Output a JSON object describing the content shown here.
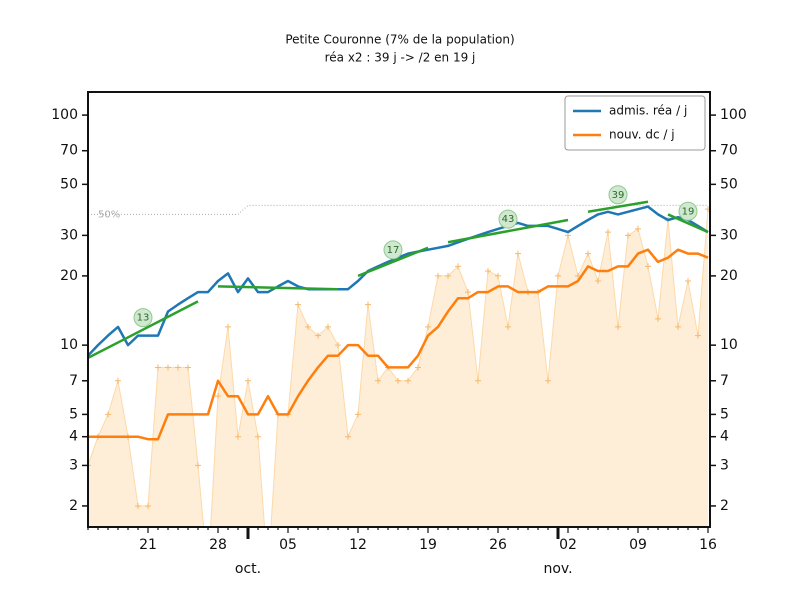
{
  "chart_data": {
    "type": "line",
    "title": "Petite Couronne (7% de la population)",
    "subtitle": "réa x2 : 39 j -> /2 en 19 j",
    "log_y": true,
    "ylim": [
      1.62,
      126
    ],
    "yticks": [
      2,
      3,
      4,
      5,
      7,
      10,
      20,
      30,
      50,
      70,
      100
    ],
    "legend": "upper right",
    "categories": [
      null,
      null,
      null,
      null,
      null,
      null,
      "21",
      null,
      null,
      null,
      null,
      null,
      null,
      "28",
      null,
      null,
      null,
      null,
      null,
      null,
      "05",
      null,
      null,
      null,
      null,
      null,
      null,
      "12",
      null,
      null,
      null,
      null,
      null,
      null,
      "19",
      null,
      null,
      null,
      null,
      null,
      null,
      "26",
      null,
      null,
      null,
      null,
      null,
      null,
      "02",
      null,
      null,
      null,
      null,
      null,
      null,
      "09",
      null,
      null,
      null,
      null,
      null,
      null,
      "16"
    ],
    "month_labels": [
      {
        "label": "oct.",
        "at": 16
      },
      {
        "label": "nov.",
        "at": 47
      }
    ],
    "series": [
      {
        "name": "admis. réa / j",
        "color": "#1f77b4",
        "values": [
          9,
          10,
          11,
          12,
          10,
          11,
          11,
          11,
          14,
          15,
          16,
          17,
          17,
          19,
          20.5,
          17,
          19.5,
          17,
          17,
          18,
          19,
          18,
          17.5,
          17.5,
          17.5,
          17.5,
          17.5,
          19,
          21,
          22,
          23,
          24,
          25,
          25.5,
          26,
          26.5,
          27,
          28,
          29,
          30,
          31,
          32,
          33,
          34,
          33,
          33,
          33,
          32,
          31,
          33,
          35,
          37,
          38,
          37,
          38,
          39,
          40,
          37,
          35,
          36,
          35,
          33,
          31
        ]
      },
      {
        "name": "nouv. dc / j",
        "color": "#ff7f0e",
        "values": [
          4,
          4,
          4,
          4,
          4,
          4,
          3.9,
          3.9,
          5,
          5,
          5,
          5,
          5,
          7,
          6,
          6,
          5,
          5,
          6,
          5,
          5,
          6,
          7,
          8,
          9,
          9,
          10,
          10,
          9,
          9,
          8,
          8,
          8,
          9,
          11,
          12,
          14,
          16,
          16,
          17,
          17,
          18,
          18,
          17,
          17,
          17,
          18,
          18,
          18,
          19,
          22,
          21,
          21,
          22,
          22,
          25,
          26,
          23,
          24,
          26,
          25,
          25,
          24
        ]
      }
    ],
    "raw": {
      "color": "#fdd9a8",
      "values": [
        3,
        4,
        5,
        7,
        4,
        2,
        2,
        8,
        8,
        8,
        8,
        3,
        1,
        6,
        12,
        4,
        7,
        4,
        1,
        5,
        5,
        15,
        12,
        11,
        12,
        10,
        4,
        5,
        15,
        7,
        8,
        7,
        7,
        8,
        12,
        20,
        20,
        22,
        17,
        7,
        21,
        20,
        12,
        25,
        17,
        17,
        7,
        20,
        30,
        20,
        25,
        19,
        31,
        12,
        30,
        32,
        22,
        13,
        35,
        12,
        19,
        11,
        39
      ]
    },
    "reference": {
      "label": "50%",
      "color": "#aaaaaa",
      "values": [
        37,
        37,
        37,
        37,
        37,
        37,
        37,
        37,
        37,
        37,
        37,
        37,
        37,
        37,
        37,
        37,
        40.5,
        40.5,
        40.5,
        40.5,
        40.5,
        40.5,
        40.5,
        40.5,
        40.5,
        40.5,
        40.5,
        40.5,
        40.5,
        40.5,
        40.5,
        40.5,
        40.5,
        40.5,
        40.5,
        40.5,
        40.5,
        40.5,
        40.5,
        40.5,
        40.5,
        40.5,
        40.5,
        40.5,
        40.5,
        40.5,
        40.5,
        40.5,
        40.5,
        40.5,
        40.5,
        40.5,
        40.5,
        40.5,
        40.5,
        40.5,
        40.5,
        40.5,
        40.5,
        40.5,
        40.5,
        40.5,
        40.5
      ]
    },
    "trends": [
      {
        "from": 0,
        "to": 11,
        "values": [
          8.8,
          15.5
        ],
        "label": "13"
      },
      {
        "from": 13,
        "to": 25,
        "values": [
          18,
          17.5
        ]
      },
      {
        "from": 27,
        "to": 34,
        "values": [
          20,
          26.5
        ],
        "label": "17"
      },
      {
        "from": 36,
        "to": 48,
        "values": [
          28,
          35
        ],
        "label": "43"
      },
      {
        "from": 50,
        "to": 56,
        "values": [
          38,
          42
        ],
        "label": "39"
      },
      {
        "from": 58,
        "to": 62,
        "values": [
          37,
          31
        ],
        "label": "19"
      }
    ],
    "trend_color": "#2ca02c"
  }
}
